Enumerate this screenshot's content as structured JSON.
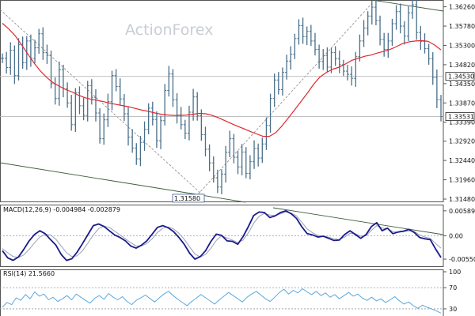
{
  "watermark": "ActionForex",
  "colors": {
    "price": "#4a6f8a",
    "ma": "#e0282e",
    "macd": "#1a1a8c",
    "signal": "#9aa0b4",
    "rsi": "#5aa8dc",
    "trend": "#3d5a3d",
    "grid": "#b8b8b8",
    "dotted": "#888888"
  },
  "chart_data": [
    {
      "type": "line",
      "panel": "price",
      "y_ticks": [
        "1.36260",
        "1.35780",
        "1.35300",
        "1.34820",
        "1.34350",
        "1.33870",
        "1.33390",
        "1.32920",
        "1.32440",
        "1.31960",
        "1.31480"
      ],
      "y_tick_values": [
        1.3626,
        1.3578,
        1.353,
        1.3482,
        1.3435,
        1.3387,
        1.3339,
        1.3292,
        1.3244,
        1.3196,
        1.3148
      ],
      "ylim": [
        1.3148,
        1.3635
      ],
      "level_labels": [
        {
          "text": "1.34530",
          "value": 1.3453
        },
        {
          "text": "1.33531",
          "value": 1.33531
        }
      ],
      "annotation": {
        "text": "1.31580",
        "value": 1.3158
      },
      "series": [
        {
          "values": [
            1.3498,
            1.3475,
            1.3518,
            1.3455,
            1.3532,
            1.3487,
            1.3541,
            1.3498,
            1.3524,
            1.3559,
            1.3512,
            1.3505,
            1.3435,
            1.3398,
            1.347,
            1.3422,
            1.3387,
            1.3333,
            1.3412,
            1.338,
            1.3356,
            1.343,
            1.3401,
            1.3362,
            1.3298,
            1.3345,
            1.339,
            1.3455,
            1.3428,
            1.3397,
            1.336,
            1.3302,
            1.3275,
            1.3248,
            1.3289,
            1.3321,
            1.3374,
            1.3346,
            1.3293,
            1.3343,
            1.3418,
            1.3459,
            1.3395,
            1.3357,
            1.3333,
            1.3312,
            1.3364,
            1.3402,
            1.3355,
            1.3308,
            1.3272,
            1.3238,
            1.3201,
            1.3178,
            1.321,
            1.3264,
            1.3298,
            1.3252,
            1.3228,
            1.3265,
            1.3212,
            1.3241,
            1.3274,
            1.325,
            1.3285,
            1.3331,
            1.3398,
            1.3444,
            1.342,
            1.3463,
            1.3491,
            1.3508,
            1.3547,
            1.3579,
            1.3552,
            1.3565,
            1.3541,
            1.352,
            1.349,
            1.3505,
            1.3476,
            1.3512,
            1.3497,
            1.3482,
            1.3466,
            1.3458,
            1.3448,
            1.3502,
            1.3541,
            1.3573,
            1.3603,
            1.3625,
            1.3592,
            1.3545,
            1.352,
            1.3541,
            1.3584,
            1.3614,
            1.3578,
            1.3553,
            1.3611,
            1.3631,
            1.3562,
            1.354,
            1.3522,
            1.3497,
            1.345,
            1.3395,
            1.3353
          ]
        },
        {
          "name": "MA",
          "values": [
            1.3585,
            1.3571,
            1.3554,
            1.3532,
            1.3509,
            1.3486,
            1.3466,
            1.345,
            1.3437,
            1.3428,
            1.342,
            1.3414,
            1.3406,
            1.34,
            1.3396,
            1.3393,
            1.339,
            1.3386,
            1.3383,
            1.338,
            1.3377,
            1.3373,
            1.3369,
            1.3366,
            1.3362,
            1.3359,
            1.3357,
            1.3356,
            1.3356,
            1.3357,
            1.3359,
            1.3361,
            1.336,
            1.3356,
            1.335,
            1.3343,
            1.3336,
            1.3329,
            1.3323,
            1.3316,
            1.331,
            1.3304,
            1.3304,
            1.3313,
            1.333,
            1.335,
            1.337,
            1.3391,
            1.3412,
            1.3434,
            1.3452,
            1.3463,
            1.3471,
            1.3476,
            1.3484,
            1.3493,
            1.3498,
            1.3503,
            1.3506,
            1.3511,
            1.3515,
            1.352,
            1.3527,
            1.3535,
            1.3539,
            1.3541,
            1.3542,
            1.354,
            1.3531,
            1.3519
          ]
        }
      ]
    },
    {
      "type": "line",
      "panel": "macd",
      "label": "MACD(12,26,9) -0.004984 -0.002879",
      "y_ticks": [
        "0.005897",
        "0.00",
        "-0.005502"
      ],
      "y_tick_values": [
        0.005897,
        0.0,
        -0.005502
      ],
      "ylim": [
        -0.0068,
        0.0068
      ],
      "series": [
        {
          "name": "MACD",
          "values": [
            -0.0035,
            -0.0052,
            -0.0058,
            -0.005,
            -0.0032,
            -0.0012,
            0.0003,
            0.0012,
            0.0005,
            -0.0009,
            -0.0022,
            -0.0044,
            -0.0058,
            -0.0054,
            -0.0038,
            -0.0018,
            0.0003,
            0.0024,
            0.0028,
            0.0022,
            0.0012,
            0.0002,
            -0.0004,
            -0.0012,
            -0.0024,
            -0.0029,
            -0.0022,
            -0.0012,
            0.0004,
            0.002,
            0.0024,
            0.0019,
            0.001,
            -0.0004,
            -0.002,
            -0.0041,
            -0.0055,
            -0.0049,
            -0.0035,
            -0.0013,
            0.0004,
            0.0001,
            -0.0012,
            -0.0013,
            -0.002,
            -0.0002,
            0.0022,
            0.0048,
            0.0056,
            0.0055,
            0.0043,
            0.0047,
            0.0055,
            0.0059,
            0.0052,
            0.0041,
            0.0021,
            0.0005,
            0.0002,
            -0.0003,
            -0.0001,
            -0.0006,
            -0.0011,
            -0.001,
            0.0003,
            0.0012,
            0.0003,
            -0.0006,
            0.0003,
            0.0022,
            0.0031,
            0.0012,
            0.0018,
            0.0005,
            0.0009,
            0.0011,
            0.0015,
            0.0008,
            -0.0004,
            -0.0007,
            -0.0009,
            -0.0031,
            -0.0051
          ]
        },
        {
          "name": "Signal",
          "values": [
            -0.003,
            -0.004,
            -0.0049,
            -0.0051,
            -0.0045,
            -0.0032,
            -0.0017,
            -0.0003,
            0.0004,
            0.0002,
            -0.0008,
            -0.0024,
            -0.004,
            -0.0049,
            -0.0047,
            -0.0035,
            -0.0017,
            0.0002,
            0.0017,
            0.0023,
            0.002,
            0.0011,
            0.0002,
            -0.0007,
            -0.0016,
            -0.0024,
            -0.0024,
            -0.0018,
            -0.0007,
            0.0008,
            0.0018,
            0.0021,
            0.0016,
            0.0006,
            -0.0008,
            -0.0026,
            -0.0043,
            -0.005,
            -0.0044,
            -0.0029,
            -0.0011,
            0.0,
            -0.0005,
            -0.001,
            -0.0016,
            -0.001,
            0.0007,
            0.003,
            0.0046,
            0.0053,
            0.0049,
            0.0048,
            0.0052,
            0.0056,
            0.0054,
            0.0047,
            0.0032,
            0.0016,
            0.0007,
            0.0001,
            -0.0001,
            -0.0003,
            -0.0007,
            -0.0009,
            -0.0003,
            0.0006,
            0.0005,
            -0.0001,
            0.0,
            0.0013,
            0.0024,
            0.0018,
            0.0017,
            0.001,
            0.0009,
            0.001,
            0.0012,
            0.001,
            0.0002,
            -0.0003,
            -0.0006,
            -0.0018,
            -0.0029
          ]
        }
      ]
    },
    {
      "type": "line",
      "panel": "rsi",
      "label": "RSI(14) 21.5660",
      "y_ticks": [
        "100",
        "70",
        "30"
      ],
      "y_tick_values": [
        100,
        70,
        30
      ],
      "ylim": [
        18,
        100
      ],
      "series": [
        {
          "name": "RSI",
          "values": [
            33,
            42,
            38,
            51,
            46,
            57,
            49,
            62,
            54,
            58,
            47,
            52,
            44,
            49,
            55,
            47,
            58,
            52,
            46,
            41,
            50,
            55,
            48,
            59,
            52,
            47,
            53,
            44,
            38,
            46,
            51,
            56,
            49,
            43,
            51,
            58,
            63,
            55,
            48,
            42,
            36,
            44,
            50,
            57,
            51,
            45,
            39,
            47,
            54,
            61,
            55,
            49,
            43,
            52,
            58,
            63,
            56,
            49,
            44,
            52,
            61,
            67,
            58,
            65,
            60,
            68,
            62,
            57,
            63,
            55,
            60,
            52,
            57,
            49,
            55,
            61,
            54,
            58,
            50,
            46,
            52,
            45,
            49,
            42,
            47,
            53,
            45,
            39,
            43,
            36,
            31,
            37,
            33,
            30,
            26,
            22
          ]
        }
      ]
    }
  ]
}
